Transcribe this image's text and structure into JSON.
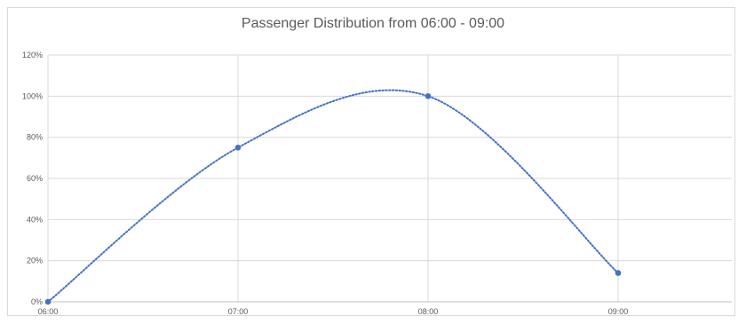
{
  "chart_data": {
    "type": "line",
    "title": "Passenger Distribution from 06:00 - 09:00",
    "x_tick_labels": [
      "06:00",
      "07:00",
      "08:00",
      "09:00"
    ],
    "y_tick_labels": [
      "0%",
      "20%",
      "40%",
      "60%",
      "80%",
      "100%",
      "120%"
    ],
    "ylim": [
      0,
      120
    ],
    "y_unit": "%",
    "grid": true,
    "series": [
      {
        "color": "#4472c4",
        "markers": [
          {
            "x": "06:00",
            "y": 0
          },
          {
            "x": "07:00",
            "y": 75
          },
          {
            "x": "08:00",
            "y": 100
          },
          {
            "x": "09:00",
            "y": 14
          }
        ],
        "smoothed_curve_dotted": true
      }
    ]
  }
}
